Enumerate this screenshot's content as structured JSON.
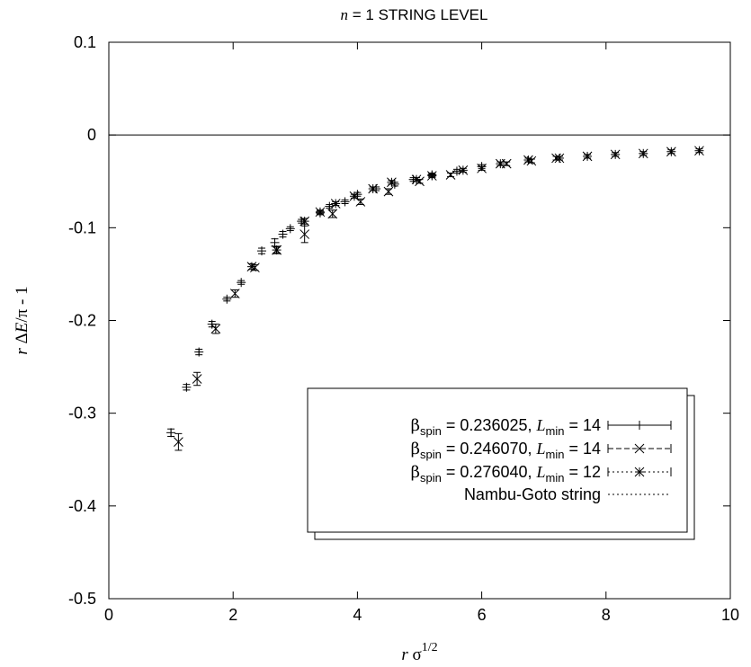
{
  "chart_data": {
    "type": "scatter",
    "title": {
      "var": "n",
      "rest": " = 1 STRING LEVEL"
    },
    "xlabel": {
      "var": "r",
      "sym": " σ",
      "sup": "1/2"
    },
    "ylabel": {
      "var": "r",
      "mid": " Δ",
      "var2": "E",
      "rest": "/π - 1"
    },
    "xlim": [
      0,
      10
    ],
    "ylim": [
      -0.5,
      0.1
    ],
    "xticks": [
      0,
      2,
      4,
      6,
      8,
      10
    ],
    "yticks": [
      -0.5,
      -0.4,
      -0.3,
      -0.2,
      -0.1,
      0,
      0.1
    ],
    "tick_labels_x": [
      "0",
      "2",
      "4",
      "6",
      "8",
      "10"
    ],
    "tick_labels_y": [
      "-0.5",
      "-0.4",
      "-0.3",
      "-0.2",
      "-0.1",
      "0",
      "0.1"
    ],
    "grid": false,
    "reference_line_y": 0,
    "legend_position": "lower-right",
    "series": [
      {
        "name": {
          "beta": "β",
          "sub": "spin",
          "val": " = 0.236025,  ",
          "L": "L",
          "Lsub": "min",
          "Lval": " = 14"
        },
        "marker": "plus",
        "line_style": "solid",
        "points": [
          [
            1.0,
            -0.321,
            0.004
          ],
          [
            1.25,
            -0.272,
            0.003
          ],
          [
            1.45,
            -0.234,
            0.003
          ],
          [
            1.66,
            -0.204,
            0.003
          ],
          [
            1.9,
            -0.177,
            0.002
          ],
          [
            2.13,
            -0.159,
            0.002
          ],
          [
            2.46,
            -0.125,
            0.003
          ],
          [
            2.67,
            -0.116,
            0.004
          ],
          [
            2.8,
            -0.107,
            0.003
          ],
          [
            2.92,
            -0.101,
            0.002
          ],
          [
            3.1,
            -0.093,
            0.002
          ],
          [
            3.4,
            -0.084,
            0.002
          ],
          [
            3.55,
            -0.077,
            0.002
          ],
          [
            3.8,
            -0.072,
            0.002
          ],
          [
            4.0,
            -0.064,
            0.002
          ],
          [
            4.3,
            -0.058,
            0.002
          ],
          [
            4.6,
            -0.053,
            0.002
          ],
          [
            4.9,
            -0.048,
            0.002
          ],
          [
            5.2,
            -0.043,
            0.002
          ],
          [
            5.6,
            -0.039,
            0.002
          ],
          [
            6.0,
            -0.034,
            0.002
          ]
        ]
      },
      {
        "name": {
          "beta": "β",
          "sub": "spin",
          "val": " = 0.246070,  ",
          "L": "L",
          "Lsub": "min",
          "Lval": " = 14"
        },
        "marker": "cross",
        "line_style": "dashed",
        "points": [
          [
            1.12,
            -0.331,
            0.009
          ],
          [
            1.42,
            -0.263,
            0.007
          ],
          [
            1.72,
            -0.209,
            0.005
          ],
          [
            2.03,
            -0.171,
            0.004
          ],
          [
            2.35,
            -0.143,
            0.003
          ],
          [
            2.7,
            -0.124,
            0.003
          ],
          [
            3.15,
            -0.107,
            0.009
          ],
          [
            3.6,
            -0.085,
            0.004
          ],
          [
            4.05,
            -0.072,
            0.003
          ],
          [
            4.5,
            -0.061,
            0.003
          ],
          [
            5.0,
            -0.05,
            0.002
          ],
          [
            5.5,
            -0.043,
            0.002
          ],
          [
            6.0,
            -0.036,
            0.002
          ],
          [
            6.4,
            -0.031,
            0.002
          ],
          [
            6.8,
            -0.028,
            0.002
          ],
          [
            7.2,
            -0.025,
            0.002
          ]
        ]
      },
      {
        "name": {
          "beta": "β",
          "sub": "spin",
          "val": " = 0.276040,  ",
          "L": "L",
          "Lsub": "min",
          "Lval": " = 12"
        },
        "marker": "star",
        "line_style": "dotted",
        "points": [
          [
            2.3,
            -0.142,
            0.003
          ],
          [
            2.7,
            -0.124,
            0.004
          ],
          [
            3.15,
            -0.093,
            0.003
          ],
          [
            3.4,
            -0.083,
            0.002
          ],
          [
            3.65,
            -0.074,
            0.002
          ],
          [
            3.95,
            -0.066,
            0.002
          ],
          [
            4.25,
            -0.058,
            0.002
          ],
          [
            4.55,
            -0.051,
            0.002
          ],
          [
            4.95,
            -0.048,
            0.002
          ],
          [
            5.2,
            -0.044,
            0.002
          ],
          [
            5.7,
            -0.038,
            0.002
          ],
          [
            6.3,
            -0.031,
            0.002
          ],
          [
            6.75,
            -0.027,
            0.002
          ],
          [
            7.25,
            -0.025,
            0.002
          ],
          [
            7.7,
            -0.023,
            0.002
          ],
          [
            8.15,
            -0.021,
            0.002
          ],
          [
            8.6,
            -0.02,
            0.002
          ],
          [
            9.05,
            -0.018,
            0.002
          ],
          [
            9.5,
            -0.017,
            0.002
          ]
        ]
      },
      {
        "name": {
          "plain": "Nambu-Goto string"
        },
        "marker": "none",
        "line_style": "dotted",
        "curve": "nambu_goto_n1",
        "x_range": [
          0.78,
          10
        ]
      }
    ]
  }
}
